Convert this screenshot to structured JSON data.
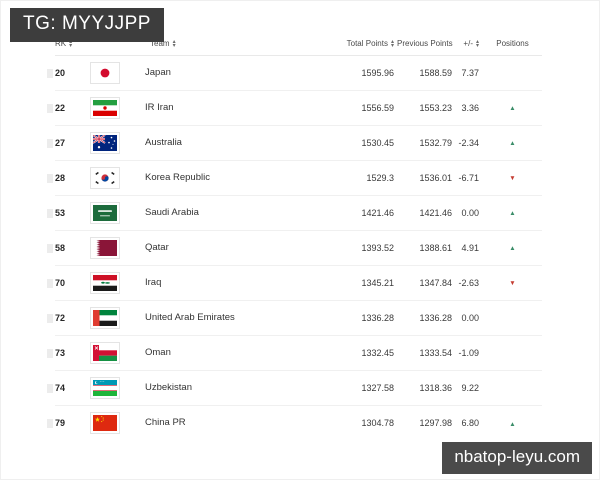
{
  "overlays": {
    "top_badge": "TG: MYYJJPP",
    "bottom_badge": "nbatop-leyu.com"
  },
  "colors": {
    "top_badge_bg": "#3d3d3d",
    "bottom_badge_bg": "#4a4a4a",
    "up_arrow": "#3a8d68",
    "down_arrow": "#c43a2f"
  },
  "icons": {
    "sort_up": "▴",
    "sort_down": "▾",
    "position_up": "▲",
    "position_down": "▼"
  },
  "ranking_table": {
    "columns": [
      {
        "key": "rk",
        "label": "RK",
        "sortable": true
      },
      {
        "key": "team",
        "label": "Team",
        "sortable": true
      },
      {
        "key": "total",
        "label": "Total Points",
        "sortable": true
      },
      {
        "key": "previous",
        "label": "Previous Points",
        "sortable": false
      },
      {
        "key": "diff",
        "label": "+/-",
        "sortable": true
      },
      {
        "key": "positions",
        "label": "Positions",
        "sortable": false
      }
    ],
    "rows": [
      {
        "rk": "20",
        "team": "Japan",
        "flag": "jp",
        "total": "1595.96",
        "previous": "1588.59",
        "diff": "7.37",
        "move": "none"
      },
      {
        "rk": "22",
        "team": "IR Iran",
        "flag": "ir",
        "total": "1556.59",
        "previous": "1553.23",
        "diff": "3.36",
        "move": "up"
      },
      {
        "rk": "27",
        "team": "Australia",
        "flag": "au",
        "total": "1530.45",
        "previous": "1532.79",
        "diff": "-2.34",
        "move": "up"
      },
      {
        "rk": "28",
        "team": "Korea Republic",
        "flag": "kr",
        "total": "1529.3",
        "previous": "1536.01",
        "diff": "-6.71",
        "move": "down"
      },
      {
        "rk": "53",
        "team": "Saudi Arabia",
        "flag": "sa",
        "total": "1421.46",
        "previous": "1421.46",
        "diff": "0.00",
        "move": "up"
      },
      {
        "rk": "58",
        "team": "Qatar",
        "flag": "qa",
        "total": "1393.52",
        "previous": "1388.61",
        "diff": "4.91",
        "move": "up"
      },
      {
        "rk": "70",
        "team": "Iraq",
        "flag": "iq",
        "total": "1345.21",
        "previous": "1347.84",
        "diff": "-2.63",
        "move": "down"
      },
      {
        "rk": "72",
        "team": "United Arab Emirates",
        "flag": "ae",
        "total": "1336.28",
        "previous": "1336.28",
        "diff": "0.00",
        "move": "none"
      },
      {
        "rk": "73",
        "team": "Oman",
        "flag": "om",
        "total": "1332.45",
        "previous": "1333.54",
        "diff": "-1.09",
        "move": "none"
      },
      {
        "rk": "74",
        "team": "Uzbekistan",
        "flag": "uz",
        "total": "1327.58",
        "previous": "1318.36",
        "diff": "9.22",
        "move": "none"
      },
      {
        "rk": "79",
        "team": "China PR",
        "flag": "cn",
        "total": "1304.78",
        "previous": "1297.98",
        "diff": "6.80",
        "move": "up"
      }
    ]
  }
}
